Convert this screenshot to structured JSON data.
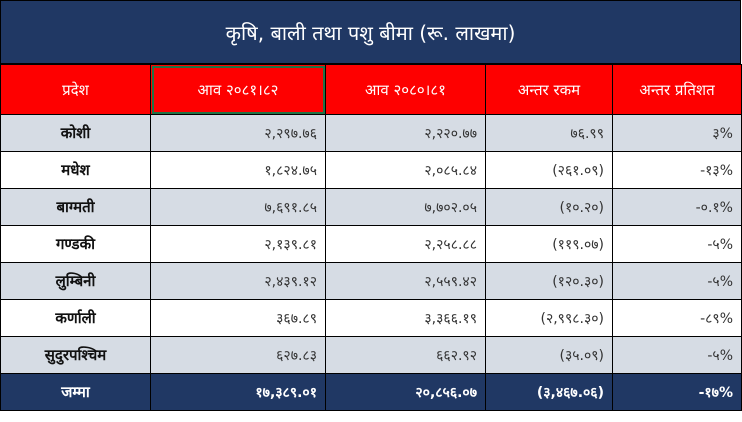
{
  "title": "कृषि, बाली तथा पशु बीमा (रू. लाखमा)",
  "headers": [
    "प्रदेश",
    "आव २०८१।८२",
    "आव २०८०।८१",
    "अन्तर रकम",
    "अन्तर प्रतिशत"
  ],
  "rows": [
    [
      "कोशी",
      "२,२९७.७६",
      "२,२२०.७७",
      "७६.९९",
      "३%"
    ],
    [
      "मधेश",
      "१,८२४.७५",
      "२,०८५.८४",
      "(२६१.०९)",
      "-१३%"
    ],
    [
      "बाग्मती",
      "७,६९१.८५",
      "७,७०२.०५",
      "(१०.२०)",
      "-०.१%"
    ],
    [
      "गण्डकी",
      "२,१३९.८१",
      "२,२५८.८८",
      "(११९.०७)",
      "-५%"
    ],
    [
      "लुम्बिनी",
      "२,४३९.१२",
      "२,५५९.४२",
      "(१२०.३०)",
      "-५%"
    ],
    [
      "कर्णाली",
      "३६७.८९",
      "३,३६६.१९",
      "(२,९९८.३०)",
      "-८९%"
    ],
    [
      "सुदुरपश्चिम",
      "६२७.८३",
      "६६२.९२",
      "(३५.०९)",
      "-५%"
    ]
  ],
  "total": [
    "जम्मा",
    "१७,३८९.०१",
    "२०,८५६.०७",
    "(३,४६७.०६)",
    "-१७%"
  ]
}
